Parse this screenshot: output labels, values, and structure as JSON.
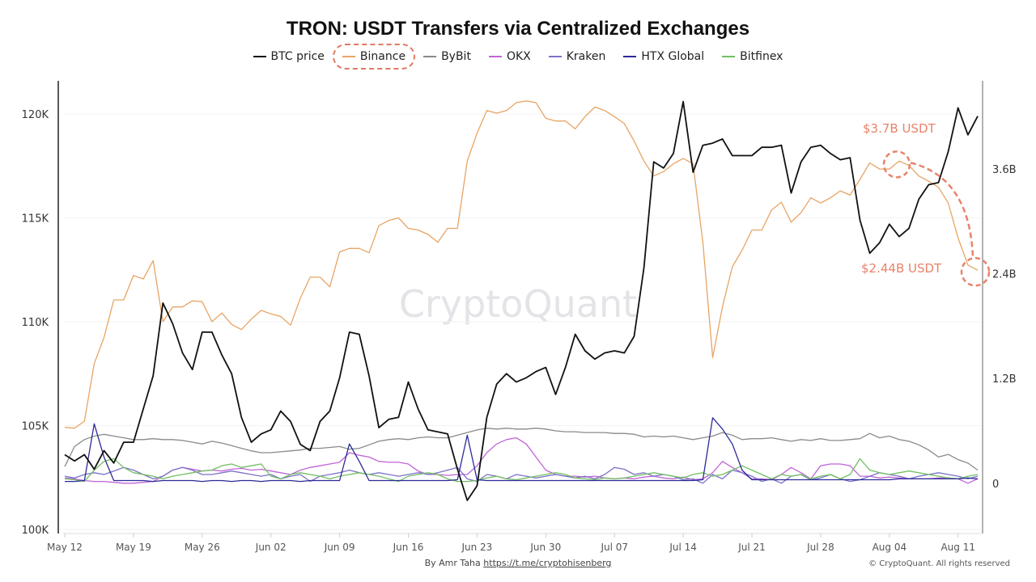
{
  "chart_data": {
    "type": "line",
    "title": "TRON: USDT Transfers via Centralized Exchanges",
    "x": [
      "May 12",
      "May 13",
      "May 14",
      "May 15",
      "May 16",
      "May 17",
      "May 18",
      "May 19",
      "May 20",
      "May 21",
      "May 22",
      "May 23",
      "May 24",
      "May 25",
      "May 26",
      "May 27",
      "May 28",
      "May 29",
      "May 30",
      "May 31",
      "Jun 01",
      "Jun 02",
      "Jun 03",
      "Jun 04",
      "Jun 05",
      "Jun 06",
      "Jun 07",
      "Jun 08",
      "Jun 09",
      "Jun 10",
      "Jun 11",
      "Jun 12",
      "Jun 13",
      "Jun 14",
      "Jun 15",
      "Jun 16",
      "Jun 17",
      "Jun 18",
      "Jun 19",
      "Jun 20",
      "Jun 21",
      "Jun 22",
      "Jun 23",
      "Jun 24",
      "Jun 25",
      "Jun 26",
      "Jun 27",
      "Jun 28",
      "Jun 29",
      "Jun 30",
      "Jul 01",
      "Jul 02",
      "Jul 03",
      "Jul 04",
      "Jul 05",
      "Jul 06",
      "Jul 07",
      "Jul 08",
      "Jul 09",
      "Jul 10",
      "Jul 11",
      "Jul 12",
      "Jul 13",
      "Jul 14",
      "Jul 15",
      "Jul 16",
      "Jul 17",
      "Jul 18",
      "Jul 19",
      "Jul 20",
      "Jul 21",
      "Jul 22",
      "Jul 23",
      "Jul 24",
      "Jul 25",
      "Jul 26",
      "Jul 27",
      "Jul 28",
      "Jul 29",
      "Jul 30",
      "Jul 31",
      "Aug 01",
      "Aug 02",
      "Aug 03",
      "Aug 04",
      "Aug 05",
      "Aug 06",
      "Aug 07",
      "Aug 08",
      "Aug 09",
      "Aug 10",
      "Aug 11",
      "Aug 12",
      "Aug 13"
    ],
    "x_tick_labels": [
      "May 12",
      "May 19",
      "May 26",
      "Jun 02",
      "Jun 09",
      "Jun 16",
      "Jun 23",
      "Jun 30",
      "Jul 07",
      "Jul 14",
      "Jul 21",
      "Jul 28",
      "Aug 04",
      "Aug 11"
    ],
    "y_left": {
      "ticks": [
        100000,
        105000,
        110000,
        115000,
        120000
      ],
      "tick_labels": [
        "100K",
        "105K",
        "110K",
        "115K",
        "120K"
      ],
      "range": [
        100000,
        121600
      ]
    },
    "y_right": {
      "ticks": [
        0,
        1.2,
        2.4,
        3.6
      ],
      "tick_labels": [
        "0",
        "1.2B",
        "2.4B",
        "3.6B"
      ],
      "range": [
        -0.53,
        4.61
      ],
      "unit": "B USDT"
    },
    "grid": true,
    "legend_placement": "top",
    "series": [
      {
        "name": "BTC price",
        "axis": "left",
        "color": "#111111",
        "values": [
          103600,
          103300,
          103600,
          102900,
          103800,
          103200,
          104200,
          104200,
          105800,
          107400,
          110900,
          109900,
          108500,
          107700,
          109500,
          109500,
          108400,
          107500,
          105400,
          104200,
          104600,
          104800,
          105700,
          105200,
          104100,
          103800,
          105200,
          105700,
          107300,
          109500,
          109400,
          107400,
          104900,
          105300,
          105400,
          107100,
          105800,
          104800,
          104700,
          104600,
          102900,
          101400,
          102100,
          105400,
          107000,
          107500,
          107100,
          107300,
          107600,
          107800,
          106500,
          107800,
          109400,
          108600,
          108200,
          108500,
          108600,
          108500,
          109300,
          112600,
          117700,
          117400,
          118100,
          120600,
          117200,
          118500,
          118600,
          118800,
          118000,
          118000,
          118000,
          118400,
          118400,
          118500,
          116200,
          117700,
          118400,
          118500,
          118100,
          117800,
          117900,
          114900,
          113300,
          113800,
          114700,
          114100,
          114500,
          115900,
          116600,
          116700,
          118200,
          120300,
          119000,
          119900
        ]
      },
      {
        "name": "Binance",
        "axis": "right",
        "color": "#e8a465",
        "values": [
          0.64,
          0.63,
          0.71,
          1.37,
          1.67,
          2.1,
          2.1,
          2.38,
          2.34,
          2.55,
          1.85,
          2.02,
          2.02,
          2.09,
          2.08,
          1.85,
          1.95,
          1.82,
          1.76,
          1.88,
          1.98,
          1.94,
          1.91,
          1.81,
          2.12,
          2.36,
          2.36,
          2.25,
          2.65,
          2.69,
          2.69,
          2.64,
          2.95,
          3.01,
          3.04,
          2.92,
          2.9,
          2.85,
          2.76,
          2.92,
          2.92,
          3.69,
          4.01,
          4.27,
          4.24,
          4.27,
          4.36,
          4.38,
          4.36,
          4.18,
          4.15,
          4.15,
          4.06,
          4.2,
          4.31,
          4.27,
          4.2,
          4.12,
          3.92,
          3.69,
          3.52,
          3.57,
          3.66,
          3.72,
          3.66,
          2.76,
          1.44,
          2.02,
          2.48,
          2.67,
          2.9,
          2.9,
          3.13,
          3.22,
          2.99,
          3.1,
          3.27,
          3.21,
          3.27,
          3.35,
          3.3,
          3.48,
          3.67,
          3.6,
          3.6,
          3.69,
          3.64,
          3.52,
          3.46,
          3.39,
          3.21,
          2.81,
          2.5,
          2.44
        ]
      },
      {
        "name": "ByBit",
        "axis": "right",
        "color": "#8a8a8a",
        "values": [
          0.19,
          0.42,
          0.5,
          0.54,
          0.56,
          0.54,
          0.52,
          0.5,
          0.5,
          0.51,
          0.5,
          0.5,
          0.49,
          0.47,
          0.45,
          0.48,
          0.46,
          0.43,
          0.4,
          0.37,
          0.35,
          0.35,
          0.36,
          0.37,
          0.38,
          0.4,
          0.4,
          0.41,
          0.42,
          0.39,
          0.4,
          0.44,
          0.48,
          0.5,
          0.51,
          0.5,
          0.52,
          0.53,
          0.52,
          0.52,
          0.55,
          0.58,
          0.61,
          0.63,
          0.62,
          0.63,
          0.62,
          0.62,
          0.63,
          0.62,
          0.6,
          0.59,
          0.59,
          0.58,
          0.58,
          0.58,
          0.57,
          0.57,
          0.56,
          0.53,
          0.54,
          0.53,
          0.54,
          0.52,
          0.5,
          0.52,
          0.54,
          0.58,
          0.55,
          0.5,
          0.51,
          0.51,
          0.52,
          0.5,
          0.48,
          0.5,
          0.49,
          0.51,
          0.49,
          0.49,
          0.5,
          0.51,
          0.57,
          0.52,
          0.54,
          0.5,
          0.48,
          0.44,
          0.38,
          0.3,
          0.33,
          0.27,
          0.23,
          0.15
        ]
      },
      {
        "name": "OKX",
        "axis": "right",
        "color": "#c065d6",
        "values": [
          0.06,
          0.05,
          0.03,
          0.02,
          0.02,
          0.01,
          0.0,
          0.0,
          0.01,
          0.02,
          0.08,
          0.15,
          0.18,
          0.16,
          0.14,
          0.15,
          0.14,
          0.16,
          0.17,
          0.15,
          0.16,
          0.14,
          0.12,
          0.1,
          0.15,
          0.18,
          0.2,
          0.22,
          0.24,
          0.35,
          0.32,
          0.3,
          0.25,
          0.24,
          0.24,
          0.22,
          0.14,
          0.1,
          0.1,
          0.09,
          0.1,
          0.1,
          0.2,
          0.35,
          0.45,
          0.5,
          0.52,
          0.45,
          0.3,
          0.15,
          0.1,
          0.08,
          0.08,
          0.07,
          0.08,
          0.06,
          0.05,
          0.06,
          0.05,
          0.07,
          0.08,
          0.06,
          0.05,
          0.07,
          0.04,
          0.05,
          0.12,
          0.25,
          0.18,
          0.12,
          0.05,
          0.05,
          0.04,
          0.1,
          0.18,
          0.12,
          0.05,
          0.2,
          0.22,
          0.22,
          0.2,
          0.08,
          0.08,
          0.06,
          0.07,
          0.06,
          0.05,
          0.05,
          0.05,
          0.06,
          0.06,
          0.05,
          0.0,
          0.05
        ]
      },
      {
        "name": "Kraken",
        "axis": "right",
        "color": "#7b72c8",
        "values": [
          0.08,
          0.06,
          0.1,
          0.12,
          0.1,
          0.14,
          0.18,
          0.15,
          0.1,
          0.05,
          0.08,
          0.15,
          0.18,
          0.15,
          0.1,
          0.1,
          0.12,
          0.14,
          0.12,
          0.1,
          0.08,
          0.1,
          0.05,
          0.08,
          0.1,
          0.02,
          0.08,
          0.1,
          0.12,
          0.15,
          0.12,
          0.1,
          0.12,
          0.1,
          0.08,
          0.1,
          0.12,
          0.1,
          0.12,
          0.15,
          0.18,
          0.05,
          0.02,
          0.1,
          0.08,
          0.05,
          0.1,
          0.08,
          0.06,
          0.08,
          0.1,
          0.08,
          0.06,
          0.08,
          0.05,
          0.1,
          0.18,
          0.16,
          0.1,
          0.12,
          0.08,
          0.1,
          0.08,
          0.04,
          0.05,
          0.0,
          0.1,
          0.05,
          0.15,
          0.12,
          0.08,
          0.02,
          0.05,
          0.0,
          0.08,
          0.1,
          0.04,
          0.06,
          0.1,
          0.05,
          0.02,
          0.04,
          0.08,
          0.12,
          0.1,
          0.08,
          0.05,
          0.08,
          0.1,
          0.12,
          0.1,
          0.08,
          0.05,
          0.08
        ]
      },
      {
        "name": "HTX Global",
        "axis": "right",
        "color": "#2b2a96",
        "values": [
          0.02,
          0.02,
          0.03,
          0.68,
          0.3,
          0.03,
          0.03,
          0.03,
          0.03,
          0.02,
          0.03,
          0.03,
          0.03,
          0.03,
          0.02,
          0.03,
          0.03,
          0.02,
          0.03,
          0.03,
          0.02,
          0.03,
          0.03,
          0.03,
          0.02,
          0.03,
          0.03,
          0.03,
          0.03,
          0.45,
          0.25,
          0.03,
          0.03,
          0.03,
          0.03,
          0.03,
          0.03,
          0.03,
          0.03,
          0.03,
          0.04,
          0.55,
          0.04,
          0.03,
          0.03,
          0.03,
          0.03,
          0.03,
          0.03,
          0.03,
          0.03,
          0.03,
          0.03,
          0.03,
          0.03,
          0.03,
          0.03,
          0.03,
          0.03,
          0.03,
          0.03,
          0.03,
          0.03,
          0.03,
          0.03,
          0.04,
          0.75,
          0.62,
          0.45,
          0.15,
          0.04,
          0.04,
          0.04,
          0.04,
          0.04,
          0.04,
          0.04,
          0.04,
          0.04,
          0.04,
          0.04,
          0.04,
          0.04,
          0.04,
          0.04,
          0.05,
          0.05,
          0.05,
          0.05,
          0.05,
          0.05,
          0.05,
          0.06,
          0.05
        ]
      },
      {
        "name": "Bitfinex",
        "axis": "right",
        "color": "#72bf62",
        "values": [
          0.05,
          0.04,
          0.02,
          0.15,
          0.25,
          0.28,
          0.18,
          0.12,
          0.1,
          0.08,
          0.05,
          0.08,
          0.1,
          0.12,
          0.14,
          0.15,
          0.2,
          0.22,
          0.18,
          0.2,
          0.22,
          0.08,
          0.05,
          0.1,
          0.12,
          0.1,
          0.08,
          0.05,
          0.08,
          0.1,
          0.12,
          0.1,
          0.08,
          0.05,
          0.02,
          0.08,
          0.1,
          0.12,
          0.1,
          0.05,
          0.02,
          0.02,
          0.03,
          0.06,
          0.08,
          0.05,
          0.04,
          0.06,
          0.08,
          0.1,
          0.12,
          0.1,
          0.06,
          0.05,
          0.04,
          0.06,
          0.05,
          0.06,
          0.08,
          0.1,
          0.12,
          0.1,
          0.08,
          0.06,
          0.1,
          0.12,
          0.08,
          0.1,
          0.15,
          0.2,
          0.15,
          0.1,
          0.05,
          0.1,
          0.08,
          0.1,
          0.05,
          0.08,
          0.1,
          0.05,
          0.1,
          0.28,
          0.15,
          0.12,
          0.1,
          0.12,
          0.14,
          0.12,
          0.1,
          0.08,
          0.06,
          0.05,
          0.08,
          0.1
        ]
      }
    ],
    "highlighted_legend": "Binance",
    "annotations": [
      {
        "text": "$3.7B USDT",
        "series": "Binance",
        "date": "Aug 05",
        "value": 3.69
      },
      {
        "text": "$2.44B USDT",
        "series": "Binance",
        "date": "Aug 13",
        "value": 2.44
      }
    ],
    "annotation_color": "#e8836a",
    "watermark": "CryptoQuant"
  },
  "footer": {
    "by": "By Amr Taha",
    "link": "https://t.me/cryptohisenberg",
    "copyright": "© CryptoQuant. All rights reserved"
  }
}
